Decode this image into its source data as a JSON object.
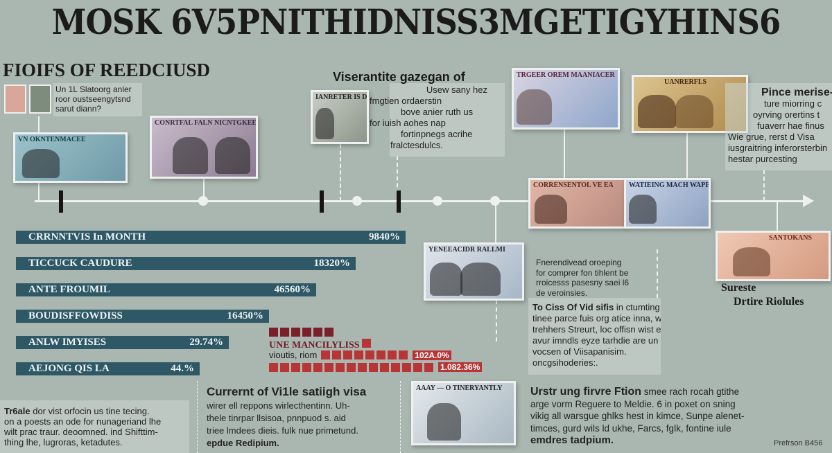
{
  "title": "MOSK 6V5PNITHIDNISS3MGETIGYHINS6",
  "subtitle": "FIOIFS OF REEDCIUSD",
  "colors": {
    "background": "#aab7b1",
    "bar": "#2f5866",
    "red": "#b83535",
    "dark_red": "#7a2028"
  },
  "intro_box": {
    "lines": [
      "Un 1L Slatoorg anler",
      "roor oustseengytsnd",
      "sarut diann?"
    ]
  },
  "notes": {
    "n1": "VN OKNTENMACEE",
    "n2": "CONRTFAL FALN NICNTGKEER",
    "n3": "IANRETER IS D",
    "n4": "TRGEER OREM MAANIACER",
    "n5": "UANRERFLS",
    "n6": "CORRENSENTOL VE EA",
    "n7": "WATIEING MACH WAPELN",
    "n8": "YENEEACIDR RALLMI",
    "n9": "SANTOKANS",
    "n10": "AAAY — O TINERYANTLY"
  },
  "callout_center": {
    "title": "Viserantite gazegan of",
    "lines": [
      "Usew sany hez",
      "fmgtien ordaerstin",
      "bove anier ruth us",
      "for iuish aohes nap",
      "fortinpnegs acrihe",
      "fralctesdulcs."
    ]
  },
  "callout_right": {
    "title": "Pince merise-",
    "lines": [
      "ture miorring c",
      "oyrving orertins t",
      "fuaverr hae finus",
      "Wie grue, rerst d Visa",
      "iusgraitring inferorsterbin",
      "hestar purcesting"
    ]
  },
  "right_caption": {
    "line1": "Sureste",
    "line2": "Drtire Riolules"
  },
  "bars": [
    {
      "label": "CRRNNTVIS In MONTH",
      "value": "9840%"
    },
    {
      "label": "TICCUCK CAUDURE",
      "value": "18320%"
    },
    {
      "label": "ANTE FROUMIL",
      "value": "46560%"
    },
    {
      "label": "BOUDISFFOWDISS",
      "value": "16450%"
    },
    {
      "label": "ANLW IMYISES",
      "value": "29.74%"
    },
    {
      "label": "AEJONG QIS LA",
      "value": "44.%"
    }
  ],
  "red_block": {
    "label": "UNE MANCILYLISS",
    "row_label": "vioutis, riom",
    "value1": "102A.0%",
    "value2": "1.082.36%"
  },
  "mid_text": {
    "lines": [
      "Fnerendivead oroeping",
      "for comprer fon tihlent be",
      "rroicesss pasesny saei l6",
      "de veroinsies."
    ]
  },
  "visa_box": {
    "lead": "To Ciss Of Vid sifis",
    "lines": [
      "in ctumting visa",
      "tinee parce fuis org atice inna, wige",
      "trehhers Streurt, loc offisn wist ef",
      "avur imndls eyze tarhdie are un aid firous",
      "vocsen of Viisapanisim.",
      "oncgsihoderies:."
    ]
  },
  "bottom_left": {
    "lead": "Tr6ale",
    "lines": [
      "dor vist orfocin us tine tecing.",
      "on a poests an ode for nunageriand lhe",
      "wilt prac traur. deoomned. ind Shifttim-",
      "thing lhe, lugroras, ketadutes."
    ]
  },
  "bottom_mid": {
    "title": "Currernt of Vi1le satiigh visa",
    "lines": [
      "wirer ell reppons wirlecthentinn. Uh-",
      "thele tinrpar llsisoa, pnnpuod s. aid",
      "triee lmdees dieis. fulk nue primetund."
    ],
    "end": "epdue Redipium."
  },
  "bottom_right": {
    "lead": "Urstr ung firvre Ftion",
    "lines": [
      "smee rach rocah gtithe",
      "arge vorm Reguere to Meldie. 6 in poxet on sning",
      "vikig all warsgue ghlks hest in kimce, Sunpe alenet-",
      "timces, gurd wils ld ukhe, Farcs, fglk, fontine iule"
    ],
    "end": "emdres tadpium."
  },
  "credit": "Prefrson B456"
}
